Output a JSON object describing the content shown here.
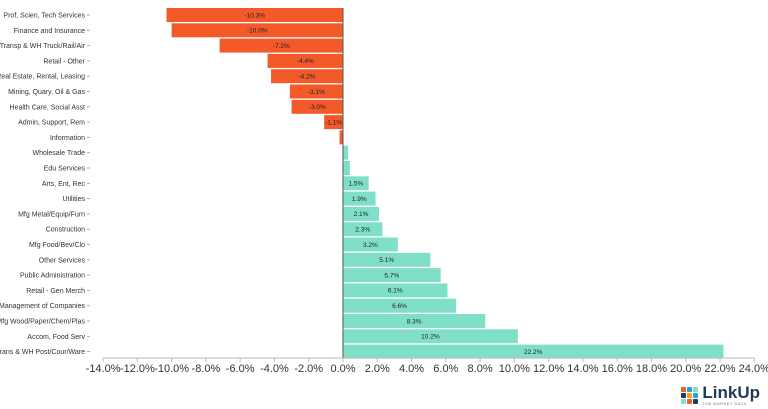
{
  "chart_data": {
    "type": "bar",
    "orientation": "horizontal",
    "categories": [
      "Prof, Scien, Tech Services",
      "Finance and Insurance",
      "Transp & WH Truck/Rail/Air",
      "Retail - Other",
      "Real Estate, Rental, Leasing",
      "Mining, Quary, Oil & Gas",
      "Health Care, Social Asst",
      "Admin, Support, Rem",
      "Information",
      "Wholesale Trade",
      "Edu Services",
      "Arts, Ent, Rec",
      "Utilities",
      "Mfg Metal/Equip/Furn",
      "Construction",
      "Mfg Food/Bev/Clo",
      "Other Services",
      "Public Administration",
      "Retail - Gen Merch",
      "Management of Companies",
      "Mfg Wood/Paper/Chem/Plas",
      "Accom, Food Serv",
      "Trans & WH Post/Cour/Ware"
    ],
    "values": [
      -10.3,
      -10.0,
      -7.2,
      -4.4,
      -4.2,
      -3.1,
      -3.0,
      -1.1,
      -0.2,
      0.3,
      0.4,
      1.5,
      1.9,
      2.1,
      2.3,
      3.2,
      5.1,
      5.7,
      6.1,
      6.6,
      8.3,
      10.2,
      22.2
    ],
    "value_labels": [
      "-10.3%",
      "-10.0%",
      "-7.2%",
      "-4.4%",
      "-4.2%",
      "-3.1%",
      "-3.0%",
      "-1.1%",
      "",
      "",
      "",
      "1.5%",
      "1.9%",
      "2.1%",
      "2.3%",
      "3.2%",
      "5.1%",
      "5.7%",
      "6.1%",
      "6.6%",
      "8.3%",
      "10.2%",
      "22.2%"
    ],
    "xlim": [
      -14,
      24
    ],
    "x_ticks": [
      "-14.0%",
      "-12.0%",
      "-10.0%",
      "-8.0%",
      "-6.0%",
      "-4.0%",
      "-2.0%",
      "0.0%",
      "2.0%",
      "4.0%",
      "6.0%",
      "8.0%",
      "10.0%",
      "12.0%",
      "14.0%",
      "16.0%",
      "18.0%",
      "20.0%",
      "22.0%",
      "24.0%"
    ],
    "x_tick_values": [
      -14,
      -12,
      -10,
      -8,
      -6,
      -4,
      -2,
      0,
      2,
      4,
      6,
      8,
      10,
      12,
      14,
      16,
      18,
      20,
      22,
      24
    ],
    "title": "",
    "xlabel": "",
    "ylabel": "",
    "grid": false,
    "legend": "none",
    "colors": {
      "negative": "#f4592a",
      "positive": "#7fdfc9",
      "axis": "#bbbbbb"
    }
  },
  "logo": {
    "name": "LinkUp",
    "tagline": "JOB MARKET DATA",
    "mark_colors": [
      "#f4592a",
      "#2a9fd6",
      "#7fdfc9",
      "#1f3b57",
      "#f4a12a",
      "#2a9fd6",
      "#7fdfc9",
      "#f4592a",
      "#1f3b57"
    ]
  }
}
